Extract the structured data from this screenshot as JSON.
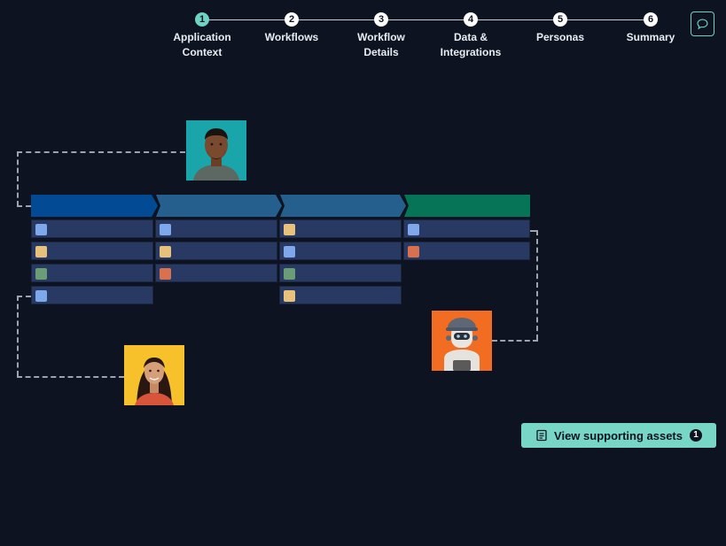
{
  "stepper": {
    "steps": [
      {
        "number": "1",
        "label": "Application\nContext",
        "active": true
      },
      {
        "number": "2",
        "label": "Workflows",
        "active": false
      },
      {
        "number": "3",
        "label": "Workflow\nDetails",
        "active": false
      },
      {
        "number": "4",
        "label": "Data &\nIntegrations",
        "active": false
      },
      {
        "number": "5",
        "label": "Personas",
        "active": false
      },
      {
        "number": "6",
        "label": "Summary",
        "active": false
      }
    ]
  },
  "header": {
    "chat_icon": "chat-bubble-icon"
  },
  "flow": {
    "stage_colors": [
      "#024a94",
      "#245f8e",
      "#245f8e",
      "#067557"
    ],
    "chip_colors": {
      "blue": "#7fa7ec",
      "yellow": "#e8c27a",
      "green": "#6a9c76",
      "orange": "#d9714e"
    },
    "columns": [
      [
        "blue",
        "yellow",
        "green",
        "blue"
      ],
      [
        "blue",
        "yellow",
        "orange"
      ],
      [
        "yellow",
        "blue",
        "green",
        "yellow"
      ],
      [
        "blue",
        "orange"
      ]
    ]
  },
  "personas": [
    {
      "name": "man-avatar",
      "bg": "#1aa5ab"
    },
    {
      "name": "woman-avatar",
      "bg": "#f7c12b"
    },
    {
      "name": "robot-avatar",
      "bg": "#f26d22"
    }
  ],
  "actions": {
    "view_assets_label": "View supporting assets",
    "view_assets_count": "1",
    "view_assets_icon": "document-icon"
  }
}
